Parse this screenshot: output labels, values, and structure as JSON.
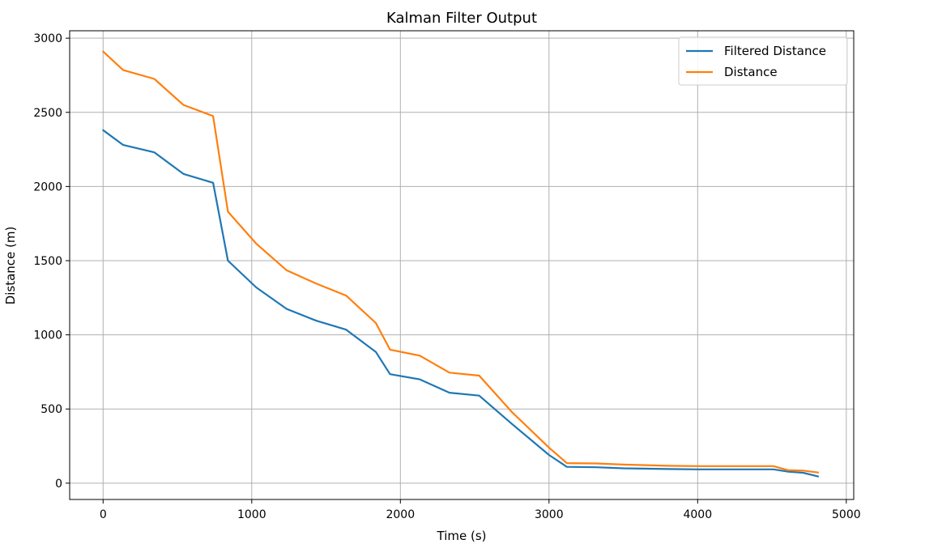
{
  "chart_data": {
    "type": "line",
    "title": "Kalman Filter Output",
    "xlabel": "Time (s)",
    "ylabel": "Distance (m)",
    "xlim": [
      -225,
      5050
    ],
    "ylim": [
      -110,
      3050
    ],
    "xticks": [
      0,
      1000,
      2000,
      3000,
      4000,
      5000
    ],
    "yticks": [
      0,
      500,
      1000,
      1500,
      2000,
      2500,
      3000
    ],
    "xtick_labels": [
      "0",
      "1000",
      "2000",
      "3000",
      "4000",
      "5000"
    ],
    "ytick_labels": [
      "0",
      "500",
      "1000",
      "1500",
      "2000",
      "2500",
      "3000"
    ],
    "grid": true,
    "legend_position": "top-right",
    "series": [
      {
        "name": "Filtered Distance",
        "color": "#1f77b4",
        "x": [
          0,
          135,
          345,
          540,
          740,
          840,
          1030,
          1235,
          1435,
          1635,
          1835,
          1930,
          2130,
          2330,
          2530,
          2750,
          3000,
          3120,
          3320,
          3500,
          3800,
          4000,
          4200,
          4510,
          4610,
          4710,
          4810
        ],
        "y": [
          2380,
          2280,
          2230,
          2085,
          2025,
          1500,
          1320,
          1175,
          1095,
          1035,
          885,
          735,
          700,
          610,
          590,
          400,
          190,
          110,
          107,
          100,
          95,
          93,
          93,
          93,
          77,
          70,
          45
        ]
      },
      {
        "name": "Distance",
        "color": "#ff7f0e",
        "x": [
          0,
          135,
          345,
          540,
          740,
          840,
          1030,
          1235,
          1435,
          1635,
          1835,
          1930,
          2130,
          2330,
          2530,
          2750,
          3000,
          3120,
          3320,
          3500,
          3800,
          4000,
          4200,
          4510,
          4610,
          4710,
          4810
        ],
        "y": [
          2910,
          2785,
          2725,
          2550,
          2475,
          1830,
          1615,
          1435,
          1345,
          1265,
          1080,
          900,
          860,
          745,
          725,
          480,
          240,
          135,
          133,
          125,
          117,
          115,
          115,
          115,
          87,
          85,
          72
        ]
      }
    ]
  }
}
